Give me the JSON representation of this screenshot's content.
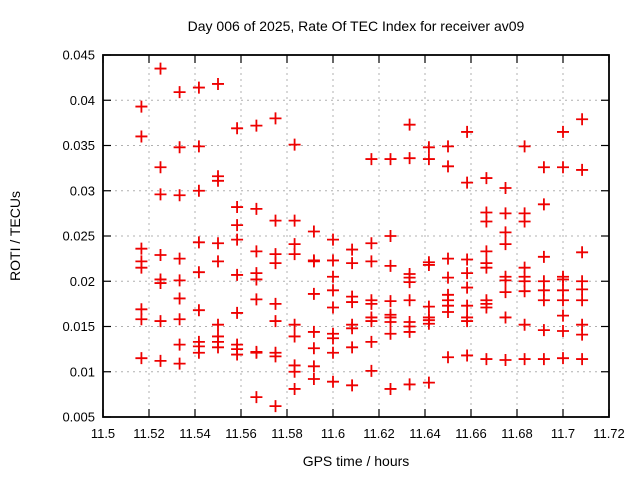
{
  "chart_data": {
    "type": "scatter",
    "title": "Day 006 of 2025, Rate Of TEC Index for receiver av09",
    "xlabel": "GPS time / hours",
    "ylabel": "ROTI / TECUs",
    "xlim": [
      11.5,
      11.72
    ],
    "ylim": [
      0.005,
      0.045
    ],
    "grid": true,
    "legend": "none",
    "marker": {
      "shape": "plus",
      "color": "#ee0000",
      "size": 12
    },
    "axis_color": "#000000",
    "grid_color": "#b0b0b0",
    "background_color": "#ffffff",
    "xticks": {
      "values": [
        11.5,
        11.52,
        11.54,
        11.56,
        11.58,
        11.6,
        11.62,
        11.64,
        11.66,
        11.68,
        11.7,
        11.72
      ],
      "labels": [
        "11.5",
        "11.52",
        "11.54",
        "11.56",
        "11.58",
        "11.6",
        "11.62",
        "11.64",
        "11.66",
        "11.68",
        "11.7",
        "11.72"
      ]
    },
    "yticks": {
      "values": [
        0.005,
        0.01,
        0.015,
        0.02,
        0.025,
        0.03,
        0.035,
        0.04,
        0.045
      ],
      "labels": [
        "0.005",
        "0.01",
        "0.015",
        "0.02",
        "0.025",
        "0.03",
        "0.035",
        "0.04",
        "0.045"
      ]
    },
    "series": [
      {
        "name": "ROTI",
        "points": [
          [
            11.5167,
            0.0393
          ],
          [
            11.5167,
            0.036
          ],
          [
            11.5167,
            0.0236
          ],
          [
            11.5167,
            0.0222
          ],
          [
            11.5167,
            0.0215
          ],
          [
            11.5167,
            0.0169
          ],
          [
            11.5167,
            0.0158
          ],
          [
            11.5167,
            0.0115
          ],
          [
            11.525,
            0.0435
          ],
          [
            11.525,
            0.0326
          ],
          [
            11.525,
            0.0296
          ],
          [
            11.525,
            0.0229
          ],
          [
            11.525,
            0.0202
          ],
          [
            11.525,
            0.0198
          ],
          [
            11.525,
            0.0156
          ],
          [
            11.525,
            0.0112
          ],
          [
            11.5333,
            0.0409
          ],
          [
            11.5333,
            0.0348
          ],
          [
            11.5333,
            0.0295
          ],
          [
            11.5333,
            0.0225
          ],
          [
            11.5333,
            0.0201
          ],
          [
            11.5333,
            0.0181
          ],
          [
            11.5333,
            0.0158
          ],
          [
            11.5333,
            0.013
          ],
          [
            11.5333,
            0.0109
          ],
          [
            11.5417,
            0.0414
          ],
          [
            11.5417,
            0.0349
          ],
          [
            11.5417,
            0.03
          ],
          [
            11.5417,
            0.0243
          ],
          [
            11.5417,
            0.021
          ],
          [
            11.5417,
            0.0168
          ],
          [
            11.5417,
            0.0133
          ],
          [
            11.5417,
            0.0128
          ],
          [
            11.5417,
            0.0121
          ],
          [
            11.55,
            0.0418
          ],
          [
            11.55,
            0.0316
          ],
          [
            11.55,
            0.0311
          ],
          [
            11.55,
            0.0242
          ],
          [
            11.55,
            0.0222
          ],
          [
            11.55,
            0.0152
          ],
          [
            11.55,
            0.0139
          ],
          [
            11.55,
            0.0133
          ],
          [
            11.55,
            0.0127
          ],
          [
            11.5583,
            0.0369
          ],
          [
            11.5583,
            0.0282
          ],
          [
            11.5583,
            0.0262
          ],
          [
            11.5583,
            0.0246
          ],
          [
            11.5583,
            0.0207
          ],
          [
            11.5583,
            0.0165
          ],
          [
            11.5583,
            0.013
          ],
          [
            11.5583,
            0.0125
          ],
          [
            11.5583,
            0.0119
          ],
          [
            11.5667,
            0.0372
          ],
          [
            11.5667,
            0.028
          ],
          [
            11.5667,
            0.0233
          ],
          [
            11.5667,
            0.0209
          ],
          [
            11.5667,
            0.0202
          ],
          [
            11.5667,
            0.018
          ],
          [
            11.5667,
            0.0122
          ],
          [
            11.5667,
            0.0121
          ],
          [
            11.5667,
            0.0072
          ],
          [
            11.575,
            0.038
          ],
          [
            11.575,
            0.0267
          ],
          [
            11.575,
            0.023
          ],
          [
            11.575,
            0.022
          ],
          [
            11.575,
            0.0175
          ],
          [
            11.575,
            0.0156
          ],
          [
            11.575,
            0.0121
          ],
          [
            11.575,
            0.0117
          ],
          [
            11.575,
            0.0062
          ],
          [
            11.5833,
            0.0351
          ],
          [
            11.5833,
            0.0267
          ],
          [
            11.5833,
            0.0241
          ],
          [
            11.5833,
            0.023
          ],
          [
            11.5833,
            0.0152
          ],
          [
            11.5833,
            0.0139
          ],
          [
            11.5833,
            0.0107
          ],
          [
            11.5833,
            0.01
          ],
          [
            11.5833,
            0.0081
          ],
          [
            11.5917,
            0.0255
          ],
          [
            11.5917,
            0.0223
          ],
          [
            11.5917,
            0.0222
          ],
          [
            11.5917,
            0.0186
          ],
          [
            11.5917,
            0.0144
          ],
          [
            11.5917,
            0.0126
          ],
          [
            11.5917,
            0.0106
          ],
          [
            11.5917,
            0.0092
          ],
          [
            11.6,
            0.0246
          ],
          [
            11.6,
            0.0223
          ],
          [
            11.6,
            0.0205
          ],
          [
            11.6,
            0.019
          ],
          [
            11.6,
            0.0171
          ],
          [
            11.6,
            0.0142
          ],
          [
            11.6,
            0.0137
          ],
          [
            11.6,
            0.0121
          ],
          [
            11.6,
            0.0089
          ],
          [
            11.6083,
            0.0235
          ],
          [
            11.6083,
            0.022
          ],
          [
            11.6083,
            0.0183
          ],
          [
            11.6083,
            0.0177
          ],
          [
            11.6083,
            0.0152
          ],
          [
            11.6083,
            0.0148
          ],
          [
            11.6083,
            0.0127
          ],
          [
            11.6083,
            0.0085
          ],
          [
            11.6167,
            0.0335
          ],
          [
            11.6167,
            0.0242
          ],
          [
            11.6167,
            0.0222
          ],
          [
            11.6167,
            0.0179
          ],
          [
            11.6167,
            0.0175
          ],
          [
            11.6167,
            0.016
          ],
          [
            11.6167,
            0.0156
          ],
          [
            11.6167,
            0.0133
          ],
          [
            11.6167,
            0.0101
          ],
          [
            11.625,
            0.0335
          ],
          [
            11.625,
            0.025
          ],
          [
            11.625,
            0.0217
          ],
          [
            11.625,
            0.0178
          ],
          [
            11.625,
            0.0163
          ],
          [
            11.625,
            0.016
          ],
          [
            11.625,
            0.0155
          ],
          [
            11.625,
            0.0142
          ],
          [
            11.625,
            0.0081
          ],
          [
            11.6333,
            0.0373
          ],
          [
            11.6333,
            0.0336
          ],
          [
            11.6333,
            0.0208
          ],
          [
            11.6333,
            0.0204
          ],
          [
            11.6333,
            0.0199
          ],
          [
            11.6333,
            0.0179
          ],
          [
            11.6333,
            0.0155
          ],
          [
            11.6333,
            0.015
          ],
          [
            11.6333,
            0.0144
          ],
          [
            11.6333,
            0.0086
          ],
          [
            11.6417,
            0.0348
          ],
          [
            11.6417,
            0.0335
          ],
          [
            11.6417,
            0.0221
          ],
          [
            11.6417,
            0.0218
          ],
          [
            11.6417,
            0.0172
          ],
          [
            11.6417,
            0.016
          ],
          [
            11.6417,
            0.0157
          ],
          [
            11.6417,
            0.0153
          ],
          [
            11.6417,
            0.0088
          ],
          [
            11.65,
            0.0349
          ],
          [
            11.65,
            0.0327
          ],
          [
            11.65,
            0.0225
          ],
          [
            11.65,
            0.0204
          ],
          [
            11.65,
            0.0185
          ],
          [
            11.65,
            0.0179
          ],
          [
            11.65,
            0.0173
          ],
          [
            11.65,
            0.0166
          ],
          [
            11.65,
            0.0116
          ],
          [
            11.6583,
            0.0365
          ],
          [
            11.6583,
            0.0309
          ],
          [
            11.6583,
            0.0224
          ],
          [
            11.6583,
            0.0209
          ],
          [
            11.6583,
            0.0193
          ],
          [
            11.6583,
            0.0173
          ],
          [
            11.6583,
            0.016
          ],
          [
            11.6583,
            0.0156
          ],
          [
            11.6583,
            0.0118
          ],
          [
            11.6667,
            0.0314
          ],
          [
            11.6667,
            0.0276
          ],
          [
            11.6667,
            0.0266
          ],
          [
            11.6667,
            0.0233
          ],
          [
            11.6667,
            0.022
          ],
          [
            11.6667,
            0.0215
          ],
          [
            11.6667,
            0.0179
          ],
          [
            11.6667,
            0.0175
          ],
          [
            11.6667,
            0.0171
          ],
          [
            11.6667,
            0.0114
          ],
          [
            11.675,
            0.0303
          ],
          [
            11.675,
            0.0275
          ],
          [
            11.675,
            0.0254
          ],
          [
            11.675,
            0.0241
          ],
          [
            11.675,
            0.0205
          ],
          [
            11.675,
            0.0201
          ],
          [
            11.675,
            0.0188
          ],
          [
            11.675,
            0.016
          ],
          [
            11.675,
            0.0113
          ],
          [
            11.6833,
            0.0349
          ],
          [
            11.6833,
            0.0275
          ],
          [
            11.6833,
            0.0266
          ],
          [
            11.6833,
            0.0215
          ],
          [
            11.6833,
            0.0205
          ],
          [
            11.6833,
            0.02
          ],
          [
            11.6833,
            0.0189
          ],
          [
            11.6833,
            0.0152
          ],
          [
            11.6833,
            0.0114
          ],
          [
            11.6917,
            0.0326
          ],
          [
            11.6917,
            0.0285
          ],
          [
            11.6917,
            0.0227
          ],
          [
            11.6917,
            0.02
          ],
          [
            11.6917,
            0.019
          ],
          [
            11.6917,
            0.0179
          ],
          [
            11.6917,
            0.0146
          ],
          [
            11.6917,
            0.0114
          ],
          [
            11.7,
            0.0365
          ],
          [
            11.7,
            0.0326
          ],
          [
            11.7,
            0.0205
          ],
          [
            11.7,
            0.0202
          ],
          [
            11.7,
            0.019
          ],
          [
            11.7,
            0.0179
          ],
          [
            11.7,
            0.0162
          ],
          [
            11.7,
            0.0145
          ],
          [
            11.7,
            0.0115
          ],
          [
            11.7083,
            0.0379
          ],
          [
            11.7083,
            0.0323
          ],
          [
            11.7083,
            0.0232
          ],
          [
            11.7083,
            0.02
          ],
          [
            11.7083,
            0.0191
          ],
          [
            11.7083,
            0.0179
          ],
          [
            11.7083,
            0.0152
          ],
          [
            11.7083,
            0.0141
          ],
          [
            11.7083,
            0.0114
          ]
        ]
      }
    ]
  }
}
